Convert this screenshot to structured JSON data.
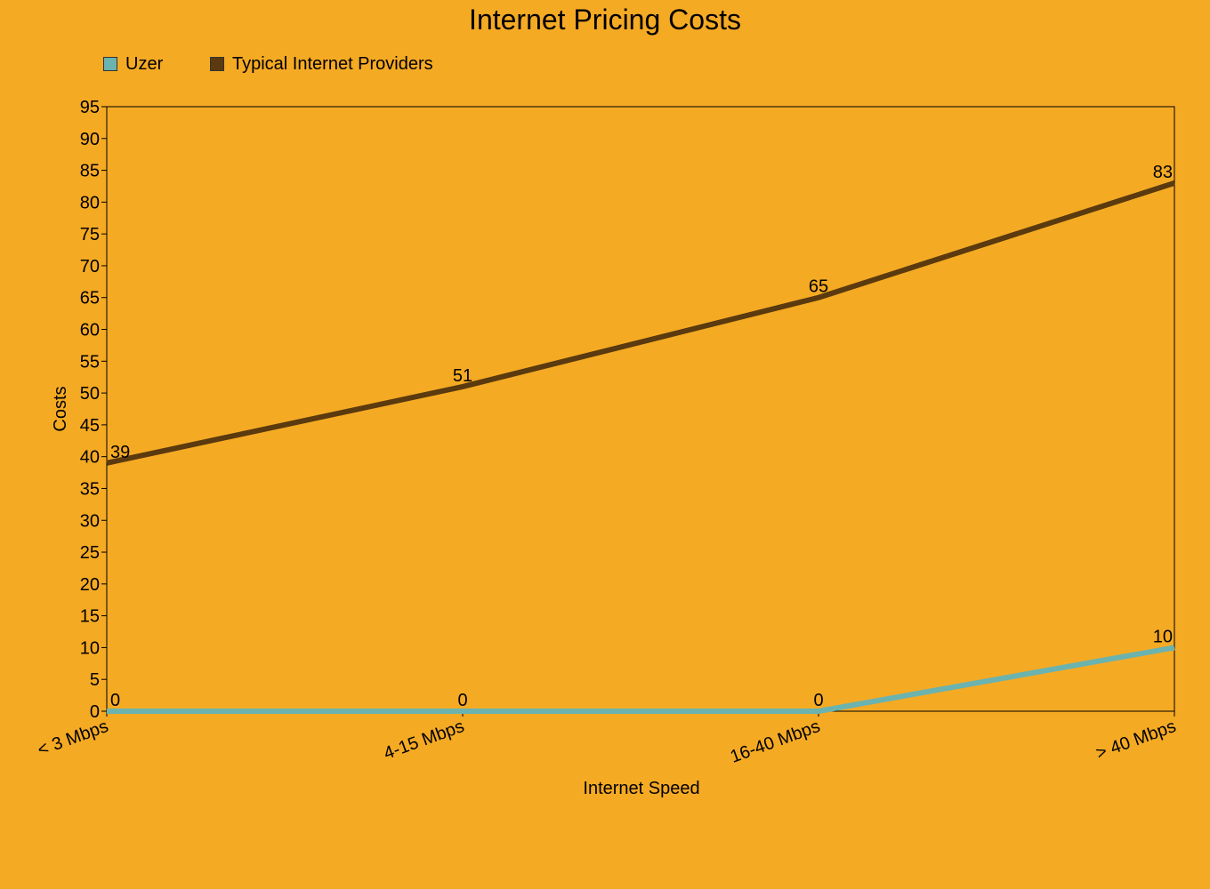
{
  "colors": {
    "background": "#F5AA24",
    "uzer": "#6BB3AE",
    "typical": "#5A3A0E"
  },
  "chart_data": {
    "type": "line",
    "title": "Internet Pricing Costs",
    "xlabel": "Internet Speed",
    "ylabel": "Costs",
    "categories": [
      "< 3 Mbps",
      "4-15 Mbps",
      "16-40 Mbps",
      "> 40 Mbps"
    ],
    "ylim": [
      0,
      95
    ],
    "yticks": [
      "0",
      "5",
      "10",
      "15",
      "20",
      "25",
      "30",
      "35",
      "40",
      "45",
      "50",
      "55",
      "60",
      "65",
      "70",
      "75",
      "80",
      "85",
      "90",
      "95"
    ],
    "legend_position": "top-left",
    "grid": false,
    "series": [
      {
        "name": "Uzer",
        "values": [
          0,
          0,
          0,
          10
        ],
        "labels": [
          "0",
          "0",
          "0",
          "10"
        ],
        "color": "#6BB3AE"
      },
      {
        "name": "Typical Internet Providers",
        "values": [
          39,
          51,
          65,
          83
        ],
        "labels": [
          "39",
          "51",
          "65",
          "83"
        ],
        "color": "#5A3A0E"
      }
    ]
  }
}
